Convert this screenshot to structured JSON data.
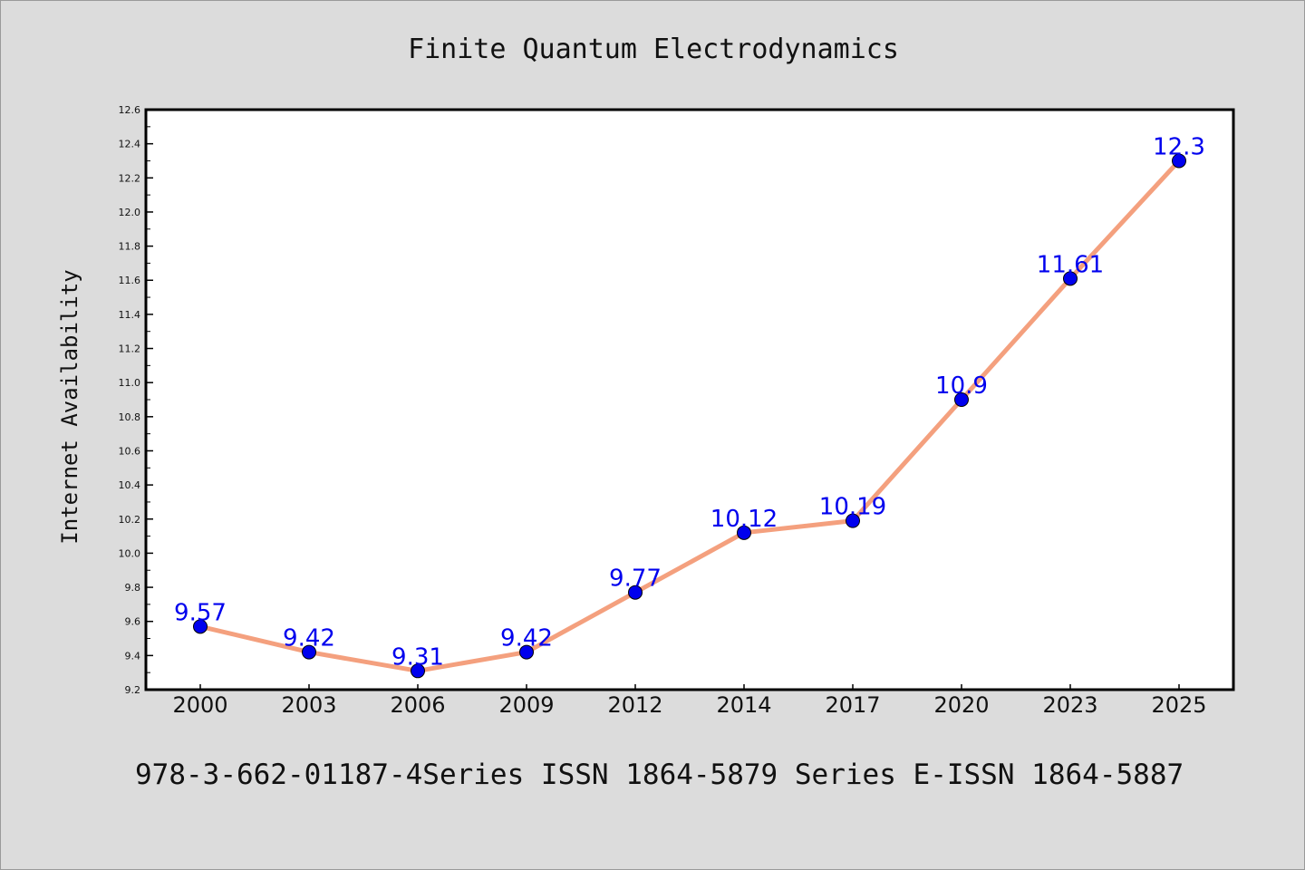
{
  "chart_data": {
    "type": "line",
    "title": "Finite Quantum Electrodynamics",
    "xlabel": "",
    "ylabel": "Internet Availability",
    "categories": [
      "2000",
      "2003",
      "2006",
      "2009",
      "2012",
      "2014",
      "2017",
      "2020",
      "2023",
      "2025"
    ],
    "series": [
      {
        "values": [
          9.57,
          9.42,
          9.31,
          9.42,
          9.77,
          10.12,
          10.19,
          10.9,
          11.61,
          12.3
        ],
        "value_labels": [
          "9.57",
          "9.42",
          "9.31",
          "9.42",
          "9.77",
          "10.12",
          "10.19",
          "10.9",
          "11.61",
          "12.3"
        ],
        "line_color": "#f4a07e",
        "marker_color": "#0000ee",
        "label_color": "#0000ee"
      }
    ],
    "ylim": [
      9.2,
      12.6
    ],
    "yticks": [
      "9.2",
      "9.4",
      "9.6",
      "9.8",
      "10.0",
      "10.2",
      "10.4",
      "10.6",
      "10.8",
      "11.0",
      "11.2",
      "11.4",
      "11.6",
      "11.8",
      "12.0",
      "12.2",
      "12.4",
      "12.6"
    ],
    "grid": false,
    "legend": "none"
  },
  "footer": {
    "text": "978-3-662-01187-4Series ISSN 1864-5879 Series E-ISSN 1864-5887"
  },
  "colors": {
    "background": "#dcdcdc",
    "plot_background": "#ffffff",
    "axis": "#000000"
  }
}
